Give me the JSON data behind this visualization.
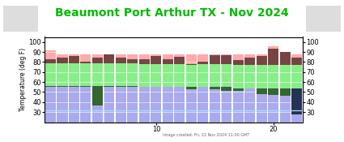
{
  "title": "Beaumont Port Arthur TX - Nov 2024",
  "ylabel": "Temperature (deg F)",
  "ylim": [
    20,
    105
  ],
  "yticks": [
    30,
    40,
    50,
    60,
    70,
    80,
    90,
    100
  ],
  "xlabel_ticks": [
    10,
    20
  ],
  "footnote": "Image created: Fri, 22 Nov 2024 11:00 GMT",
  "title_color": "#00bb00",
  "title_fontsize": 10,
  "background_color": "#ffffff",
  "days": [
    1,
    2,
    3,
    4,
    5,
    6,
    7,
    8,
    9,
    10,
    11,
    12,
    13,
    14,
    15,
    16,
    17,
    18,
    19,
    20,
    21,
    22
  ],
  "record_high": [
    92,
    88,
    88,
    88,
    88,
    88,
    88,
    88,
    88,
    88,
    88,
    88,
    88,
    88,
    88,
    88,
    88,
    88,
    88,
    96,
    90,
    88
  ],
  "normal_high": [
    79,
    79,
    79,
    79,
    79,
    79,
    79,
    79,
    78,
    78,
    78,
    78,
    78,
    78,
    78,
    78,
    77,
    77,
    77,
    77,
    77,
    77
  ],
  "normal_low": [
    56,
    56,
    56,
    56,
    56,
    56,
    56,
    56,
    55,
    55,
    55,
    55,
    55,
    55,
    55,
    55,
    54,
    54,
    54,
    54,
    54,
    54
  ],
  "record_low": [
    32,
    32,
    32,
    32,
    32,
    32,
    32,
    32,
    32,
    32,
    32,
    32,
    32,
    32,
    32,
    32,
    32,
    32,
    32,
    32,
    32,
    32
  ],
  "obs_high": [
    83,
    84,
    86,
    80,
    84,
    88,
    84,
    83,
    83,
    86,
    83,
    85,
    77,
    80,
    87,
    87,
    82,
    84,
    86,
    93,
    90,
    84
  ],
  "obs_low": [
    55,
    55,
    55,
    55,
    37,
    55,
    55,
    55,
    55,
    55,
    55,
    55,
    53,
    55,
    53,
    51,
    51,
    55,
    48,
    47,
    46,
    28
  ],
  "color_record_high_band": "#ffaaaa",
  "color_normal_band": "#88ee88",
  "color_below_normal_band": "#aaaaee",
  "color_obs_high_bar": "#774444",
  "color_obs_low_bar": "#336633",
  "color_obs_low_cold": "#223355",
  "color_record_low_line": "#aaddff",
  "bar_width": 0.9,
  "chart_bottom": 20
}
